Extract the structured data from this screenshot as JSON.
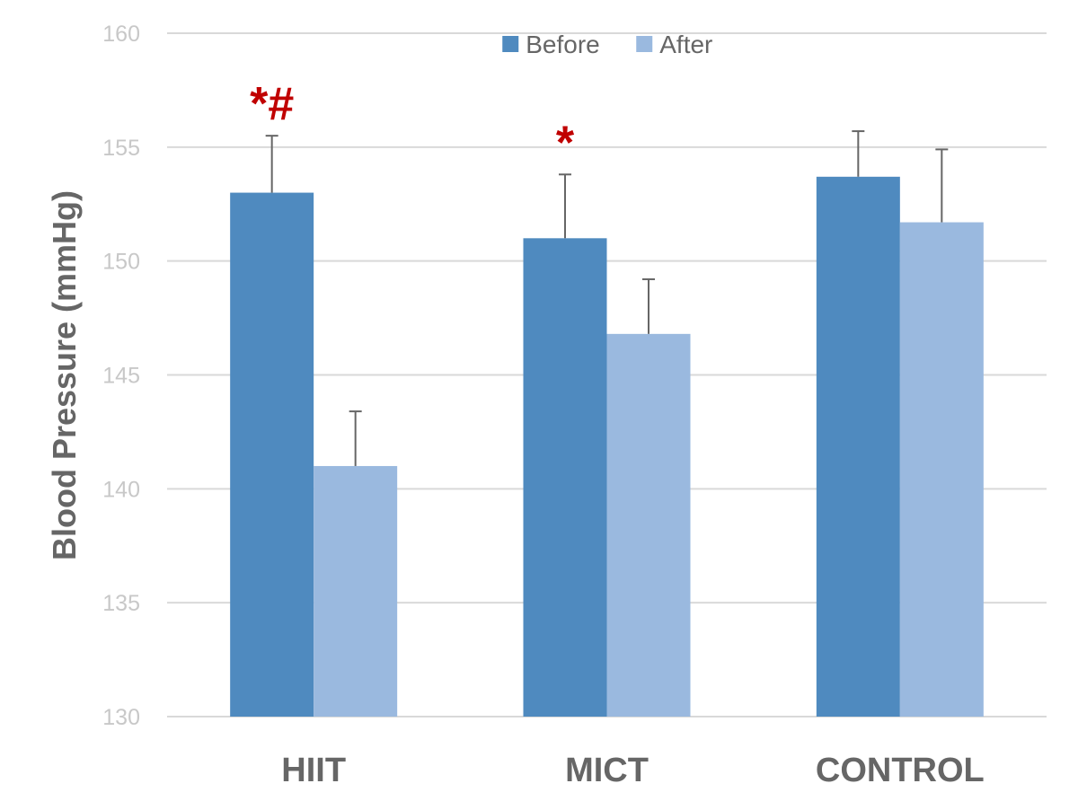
{
  "chart_data": {
    "type": "bar",
    "categories": [
      "HIIT",
      "MICT",
      "CONTROL"
    ],
    "series": [
      {
        "name": "Before",
        "values": [
          153.0,
          151.0,
          153.7
        ],
        "errors": [
          2.5,
          2.8,
          2.0
        ],
        "color": "#4f8abf"
      },
      {
        "name": "After",
        "values": [
          141.0,
          146.8,
          151.7
        ],
        "errors": [
          2.4,
          2.4,
          3.2
        ],
        "color": "#9ab9df"
      }
    ],
    "annotations": [
      {
        "category": "HIIT",
        "series": "Before",
        "text": "*#"
      },
      {
        "category": "MICT",
        "series": "Before",
        "text": "*"
      }
    ],
    "annotation_color": "#c00000",
    "title": "",
    "xlabel": "",
    "ylabel": "Blood Pressure (mmHg)",
    "ylim": [
      130,
      160
    ],
    "yticks": [
      130,
      135,
      140,
      145,
      150,
      155,
      160
    ],
    "grid": true,
    "legend": "top-center",
    "grid_color": "#d9d9d9",
    "error_bar_color": "#666666"
  }
}
